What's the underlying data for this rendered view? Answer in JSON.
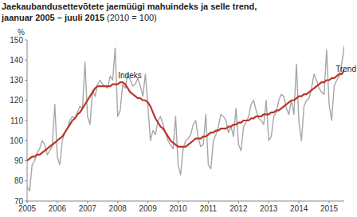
{
  "chart_data": {
    "type": "line",
    "title": "Jaekaubandusettevõtete jaemüügi mahuindeks ja selle trend,",
    "subtitle": "jaanuar 2005 – juuli 2015 (2010 = 100)",
    "y_label": "%",
    "categories": [
      "2005",
      null,
      null,
      null,
      null,
      null,
      null,
      null,
      null,
      null,
      null,
      null,
      "2006",
      null,
      null,
      null,
      null,
      null,
      null,
      null,
      null,
      null,
      null,
      null,
      "2007",
      null,
      null,
      null,
      null,
      null,
      null,
      null,
      null,
      null,
      null,
      null,
      "2008",
      null,
      null,
      null,
      null,
      null,
      null,
      null,
      null,
      null,
      null,
      null,
      "2009",
      null,
      null,
      null,
      null,
      null,
      null,
      null,
      null,
      null,
      null,
      null,
      "2010",
      null,
      null,
      null,
      null,
      null,
      null,
      null,
      null,
      null,
      null,
      null,
      "2011",
      null,
      null,
      null,
      null,
      null,
      null,
      null,
      null,
      null,
      null,
      null,
      "2012",
      null,
      null,
      null,
      null,
      null,
      null,
      null,
      null,
      null,
      null,
      null,
      "2013",
      null,
      null,
      null,
      null,
      null,
      null,
      null,
      null,
      null,
      null,
      null,
      "2014",
      null,
      null,
      null,
      null,
      null,
      null,
      null,
      null,
      null,
      null,
      null,
      "2015",
      null,
      null,
      null,
      null,
      null,
      null
    ],
    "series": [
      {
        "name": "Indeks",
        "color": "#a6a6a6",
        "values": [
          77,
          75,
          88,
          90,
          94,
          96,
          100,
          98,
          93,
          95,
          97,
          118,
          92,
          88,
          100,
          104,
          106,
          110,
          112,
          111,
          114,
          117,
          116,
          139,
          112,
          108,
          125,
          122,
          128,
          130,
          128,
          127,
          126,
          132,
          130,
          146,
          112,
          115,
          128,
          126,
          133,
          130,
          127,
          128,
          131,
          127,
          122,
          133,
          117,
          100,
          105,
          103,
          110,
          112,
          108,
          104,
          100,
          98,
          96,
          112,
          88,
          83,
          96,
          100,
          101,
          103,
          108,
          110,
          101,
          97,
          98,
          113,
          88,
          86,
          100,
          103,
          107,
          113,
          112,
          110,
          104,
          107,
          102,
          116,
          98,
          95,
          107,
          109,
          112,
          118,
          120,
          115,
          111,
          110,
          108,
          120,
          100,
          102,
          112,
          114,
          120,
          123,
          122,
          116,
          113,
          120,
          113,
          138,
          109,
          100,
          117,
          120,
          121,
          126,
          133,
          130,
          126,
          124,
          123,
          145,
          118,
          110,
          127,
          130,
          132,
          138,
          147
        ]
      },
      {
        "name": "Trend",
        "color": "#b8352b",
        "values": [
          90,
          91,
          92,
          92,
          93,
          93,
          94,
          95,
          96,
          97,
          98,
          99,
          100,
          101,
          102,
          104,
          106,
          108,
          110,
          111,
          113,
          114,
          116,
          118,
          120,
          122,
          124,
          126,
          127,
          127,
          127,
          127,
          127,
          127,
          128,
          128,
          128,
          129,
          129,
          128,
          126,
          124,
          123,
          122,
          121,
          121,
          120,
          120,
          119,
          117,
          114,
          111,
          109,
          107,
          106,
          104,
          102,
          100,
          99,
          98,
          97,
          97,
          97,
          97,
          98,
          99,
          100,
          101,
          101,
          101,
          102,
          102,
          103,
          104,
          104,
          105,
          105,
          106,
          106,
          106,
          107,
          107,
          108,
          108,
          109,
          109,
          110,
          110,
          110,
          111,
          111,
          112,
          112,
          112,
          113,
          113,
          113,
          114,
          114,
          115,
          115,
          116,
          117,
          118,
          119,
          120,
          120,
          121,
          122,
          122,
          123,
          123,
          124,
          125,
          126,
          127,
          128,
          129,
          129,
          130,
          130,
          131,
          131,
          132,
          133,
          133,
          135
        ]
      }
    ],
    "ylim": [
      70,
      150
    ],
    "yticks": [
      70,
      80,
      90,
      100,
      110,
      120,
      130,
      140,
      150
    ],
    "grid": false
  }
}
